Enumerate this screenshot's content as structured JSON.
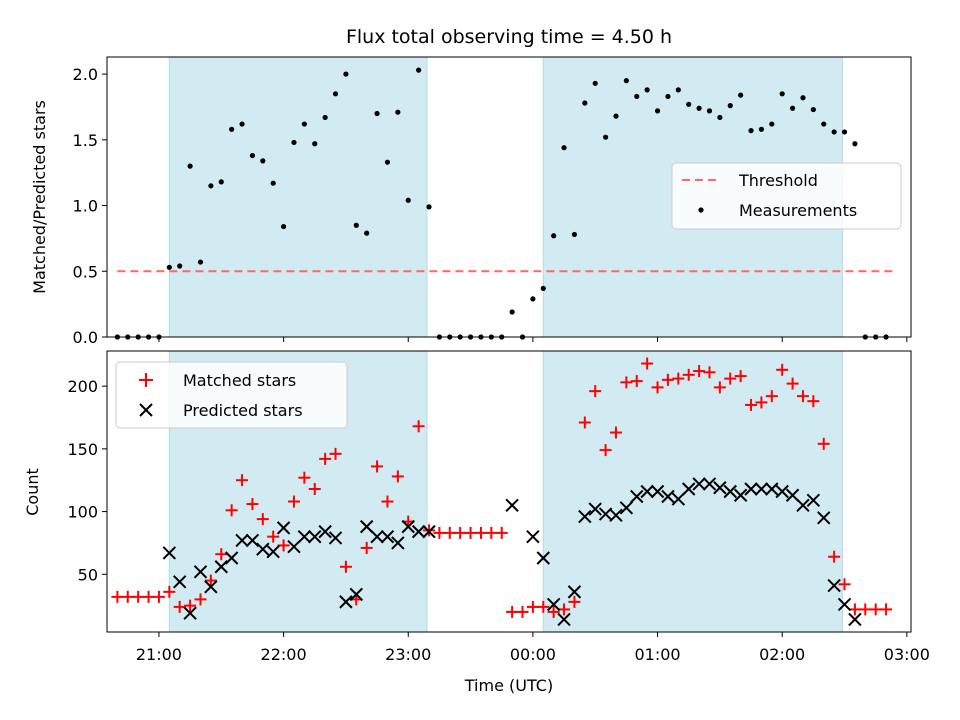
{
  "chart_data": [
    {
      "type": "scatter",
      "title": "Flux total observing time = 4.50 h",
      "xlabel": "",
      "ylabel": "Matched/Predicted stars",
      "xlim": [
        "20:35",
        "03:02"
      ],
      "ylim": [
        0,
        2.13
      ],
      "x_ticks": [
        "21:00",
        "22:00",
        "23:00",
        "00:00",
        "01:00",
        "02:00",
        "03:00"
      ],
      "y_ticks": [
        "0.0",
        "0.5",
        "1.0",
        "1.5",
        "2.0"
      ],
      "shaded_intervals": [
        [
          "21:05",
          "23:09"
        ],
        [
          "00:05",
          "02:29"
        ]
      ],
      "shade_color": "#add8e6",
      "legend_position": "center-right",
      "threshold": {
        "name": "Threshold",
        "value": 0.5,
        "x_range": [
          "20:40",
          "02:55"
        ],
        "color": "#ff6666",
        "style": "dashed"
      },
      "series": [
        {
          "name": "Measurements",
          "color": "#000000",
          "marker": "dot",
          "points": [
            [
              "20:40",
              0.0
            ],
            [
              "20:45",
              0.0
            ],
            [
              "20:50",
              0.0
            ],
            [
              "20:55",
              0.0
            ],
            [
              "21:00",
              0.0
            ],
            [
              "21:05",
              0.53
            ],
            [
              "21:10",
              0.54
            ],
            [
              "21:15",
              1.3
            ],
            [
              "21:20",
              0.57
            ],
            [
              "21:25",
              1.15
            ],
            [
              "21:30",
              1.18
            ],
            [
              "21:35",
              1.58
            ],
            [
              "21:40",
              1.62
            ],
            [
              "21:45",
              1.38
            ],
            [
              "21:50",
              1.34
            ],
            [
              "21:55",
              1.17
            ],
            [
              "22:00",
              0.84
            ],
            [
              "22:05",
              1.48
            ],
            [
              "22:10",
              1.62
            ],
            [
              "22:15",
              1.47
            ],
            [
              "22:20",
              1.67
            ],
            [
              "22:25",
              1.85
            ],
            [
              "22:30",
              2.0
            ],
            [
              "22:35",
              0.85
            ],
            [
              "22:40",
              0.79
            ],
            [
              "22:45",
              1.7
            ],
            [
              "22:50",
              1.33
            ],
            [
              "22:55",
              1.71
            ],
            [
              "23:00",
              1.04
            ],
            [
              "23:05",
              2.03
            ],
            [
              "23:10",
              0.99
            ],
            [
              "23:15",
              0.0
            ],
            [
              "23:20",
              0.0
            ],
            [
              "23:25",
              0.0
            ],
            [
              "23:30",
              0.0
            ],
            [
              "23:35",
              0.0
            ],
            [
              "23:40",
              0.0
            ],
            [
              "23:45",
              0.0
            ],
            [
              "23:50",
              0.19
            ],
            [
              "23:55",
              0.0
            ],
            [
              "00:00",
              0.29
            ],
            [
              "00:05",
              0.37
            ],
            [
              "00:10",
              0.77
            ],
            [
              "00:15",
              1.44
            ],
            [
              "00:20",
              0.78
            ],
            [
              "00:25",
              1.78
            ],
            [
              "00:30",
              1.93
            ],
            [
              "00:35",
              1.52
            ],
            [
              "00:40",
              1.68
            ],
            [
              "00:45",
              1.95
            ],
            [
              "00:50",
              1.83
            ],
            [
              "00:55",
              1.88
            ],
            [
              "01:00",
              1.72
            ],
            [
              "01:05",
              1.83
            ],
            [
              "01:10",
              1.88
            ],
            [
              "01:15",
              1.77
            ],
            [
              "01:20",
              1.74
            ],
            [
              "01:25",
              1.72
            ],
            [
              "01:30",
              1.67
            ],
            [
              "01:35",
              1.76
            ],
            [
              "01:40",
              1.84
            ],
            [
              "01:45",
              1.57
            ],
            [
              "01:50",
              1.58
            ],
            [
              "01:55",
              1.62
            ],
            [
              "02:00",
              1.85
            ],
            [
              "02:05",
              1.74
            ],
            [
              "02:10",
              1.82
            ],
            [
              "02:15",
              1.73
            ],
            [
              "02:20",
              1.62
            ],
            [
              "02:25",
              1.56
            ],
            [
              "02:30",
              1.56
            ],
            [
              "02:35",
              1.47
            ],
            [
              "02:40",
              0.0
            ],
            [
              "02:45",
              0.0
            ],
            [
              "02:50",
              0.0
            ]
          ]
        }
      ]
    },
    {
      "type": "scatter",
      "title": "",
      "xlabel": "Time (UTC)",
      "ylabel": "Count",
      "xlim": [
        "20:35",
        "03:02"
      ],
      "ylim": [
        4,
        228
      ],
      "x_ticks": [
        "21:00",
        "22:00",
        "23:00",
        "00:00",
        "01:00",
        "02:00",
        "03:00"
      ],
      "y_ticks": [
        "50",
        "100",
        "150",
        "200"
      ],
      "shaded_intervals": [
        [
          "21:05",
          "23:09"
        ],
        [
          "00:05",
          "02:29"
        ]
      ],
      "shade_color": "#add8e6",
      "legend_position": "upper-left",
      "series": [
        {
          "name": "Matched stars",
          "color": "#ff0000",
          "marker": "plus",
          "points": [
            [
              "20:40",
              32
            ],
            [
              "20:45",
              32
            ],
            [
              "20:50",
              32
            ],
            [
              "20:55",
              32
            ],
            [
              "21:00",
              32
            ],
            [
              "21:05",
              36
            ],
            [
              "21:10",
              24
            ],
            [
              "21:15",
              25
            ],
            [
              "21:20",
              30
            ],
            [
              "21:25",
              45
            ],
            [
              "21:30",
              66
            ],
            [
              "21:35",
              101
            ],
            [
              "21:40",
              125
            ],
            [
              "21:45",
              106
            ],
            [
              "21:50",
              94
            ],
            [
              "21:55",
              80
            ],
            [
              "22:00",
              73
            ],
            [
              "22:05",
              108
            ],
            [
              "22:10",
              127
            ],
            [
              "22:15",
              118
            ],
            [
              "22:20",
              142
            ],
            [
              "22:25",
              146
            ],
            [
              "22:30",
              56
            ],
            [
              "22:35",
              30
            ],
            [
              "22:40",
              71
            ],
            [
              "22:45",
              136
            ],
            [
              "22:50",
              108
            ],
            [
              "22:55",
              128
            ],
            [
              "23:00",
              92
            ],
            [
              "23:05",
              168
            ],
            [
              "23:10",
              85
            ],
            [
              "23:15",
              83
            ],
            [
              "23:20",
              83
            ],
            [
              "23:25",
              83
            ],
            [
              "23:30",
              83
            ],
            [
              "23:35",
              83
            ],
            [
              "23:40",
              83
            ],
            [
              "23:45",
              83
            ],
            [
              "23:50",
              20
            ],
            [
              "23:55",
              20
            ],
            [
              "00:00",
              24
            ],
            [
              "00:05",
              24
            ],
            [
              "00:10",
              20
            ],
            [
              "00:15",
              22
            ],
            [
              "00:20",
              28
            ],
            [
              "00:25",
              171
            ],
            [
              "00:30",
              196
            ],
            [
              "00:35",
              149
            ],
            [
              "00:40",
              163
            ],
            [
              "00:45",
              203
            ],
            [
              "00:50",
              204
            ],
            [
              "00:55",
              218
            ],
            [
              "01:00",
              199
            ],
            [
              "01:05",
              205
            ],
            [
              "01:10",
              206
            ],
            [
              "01:15",
              209
            ],
            [
              "01:20",
              212
            ],
            [
              "01:25",
              211
            ],
            [
              "01:30",
              199
            ],
            [
              "01:35",
              206
            ],
            [
              "01:40",
              208
            ],
            [
              "01:45",
              185
            ],
            [
              "01:50",
              187
            ],
            [
              "01:55",
              192
            ],
            [
              "02:00",
              213
            ],
            [
              "02:05",
              202
            ],
            [
              "02:10",
              192
            ],
            [
              "02:15",
              188
            ],
            [
              "02:20",
              154
            ],
            [
              "02:25",
              64
            ],
            [
              "02:30",
              42
            ],
            [
              "02:35",
              22
            ],
            [
              "02:40",
              22
            ],
            [
              "02:45",
              22
            ],
            [
              "02:50",
              22
            ]
          ]
        },
        {
          "name": "Predicted stars",
          "color": "#000000",
          "marker": "x",
          "points": [
            [
              "21:05",
              67
            ],
            [
              "21:10",
              44
            ],
            [
              "21:15",
              19
            ],
            [
              "21:20",
              52
            ],
            [
              "21:25",
              40
            ],
            [
              "21:30",
              56
            ],
            [
              "21:35",
              63
            ],
            [
              "21:40",
              77
            ],
            [
              "21:45",
              77
            ],
            [
              "21:50",
              70
            ],
            [
              "21:55",
              68
            ],
            [
              "22:00",
              87
            ],
            [
              "22:05",
              72
            ],
            [
              "22:10",
              80
            ],
            [
              "22:15",
              80
            ],
            [
              "22:20",
              84
            ],
            [
              "22:25",
              79
            ],
            [
              "22:30",
              28
            ],
            [
              "22:35",
              34
            ],
            [
              "22:40",
              88
            ],
            [
              "22:45",
              80
            ],
            [
              "22:50",
              80
            ],
            [
              "22:55",
              75
            ],
            [
              "23:00",
              88
            ],
            [
              "23:05",
              84
            ],
            [
              "23:10",
              84
            ],
            [
              "23:50",
              105
            ],
            [
              "00:00",
              80
            ],
            [
              "00:05",
              63
            ],
            [
              "00:10",
              26
            ],
            [
              "00:15",
              14
            ],
            [
              "00:20",
              36
            ],
            [
              "00:25",
              96
            ],
            [
              "00:30",
              102
            ],
            [
              "00:35",
              98
            ],
            [
              "00:40",
              97
            ],
            [
              "00:45",
              103
            ],
            [
              "00:50",
              112
            ],
            [
              "00:55",
              116
            ],
            [
              "01:00",
              116
            ],
            [
              "01:05",
              112
            ],
            [
              "01:10",
              110
            ],
            [
              "01:15",
              118
            ],
            [
              "01:20",
              122
            ],
            [
              "01:25",
              122
            ],
            [
              "01:30",
              119
            ],
            [
              "01:35",
              116
            ],
            [
              "01:40",
              113
            ],
            [
              "01:45",
              118
            ],
            [
              "01:50",
              118
            ],
            [
              "01:55",
              118
            ],
            [
              "02:00",
              116
            ],
            [
              "02:05",
              113
            ],
            [
              "02:10",
              105
            ],
            [
              "02:15",
              109
            ],
            [
              "02:20",
              95
            ],
            [
              "02:25",
              41
            ],
            [
              "02:30",
              26
            ],
            [
              "02:35",
              14
            ]
          ]
        }
      ]
    }
  ]
}
